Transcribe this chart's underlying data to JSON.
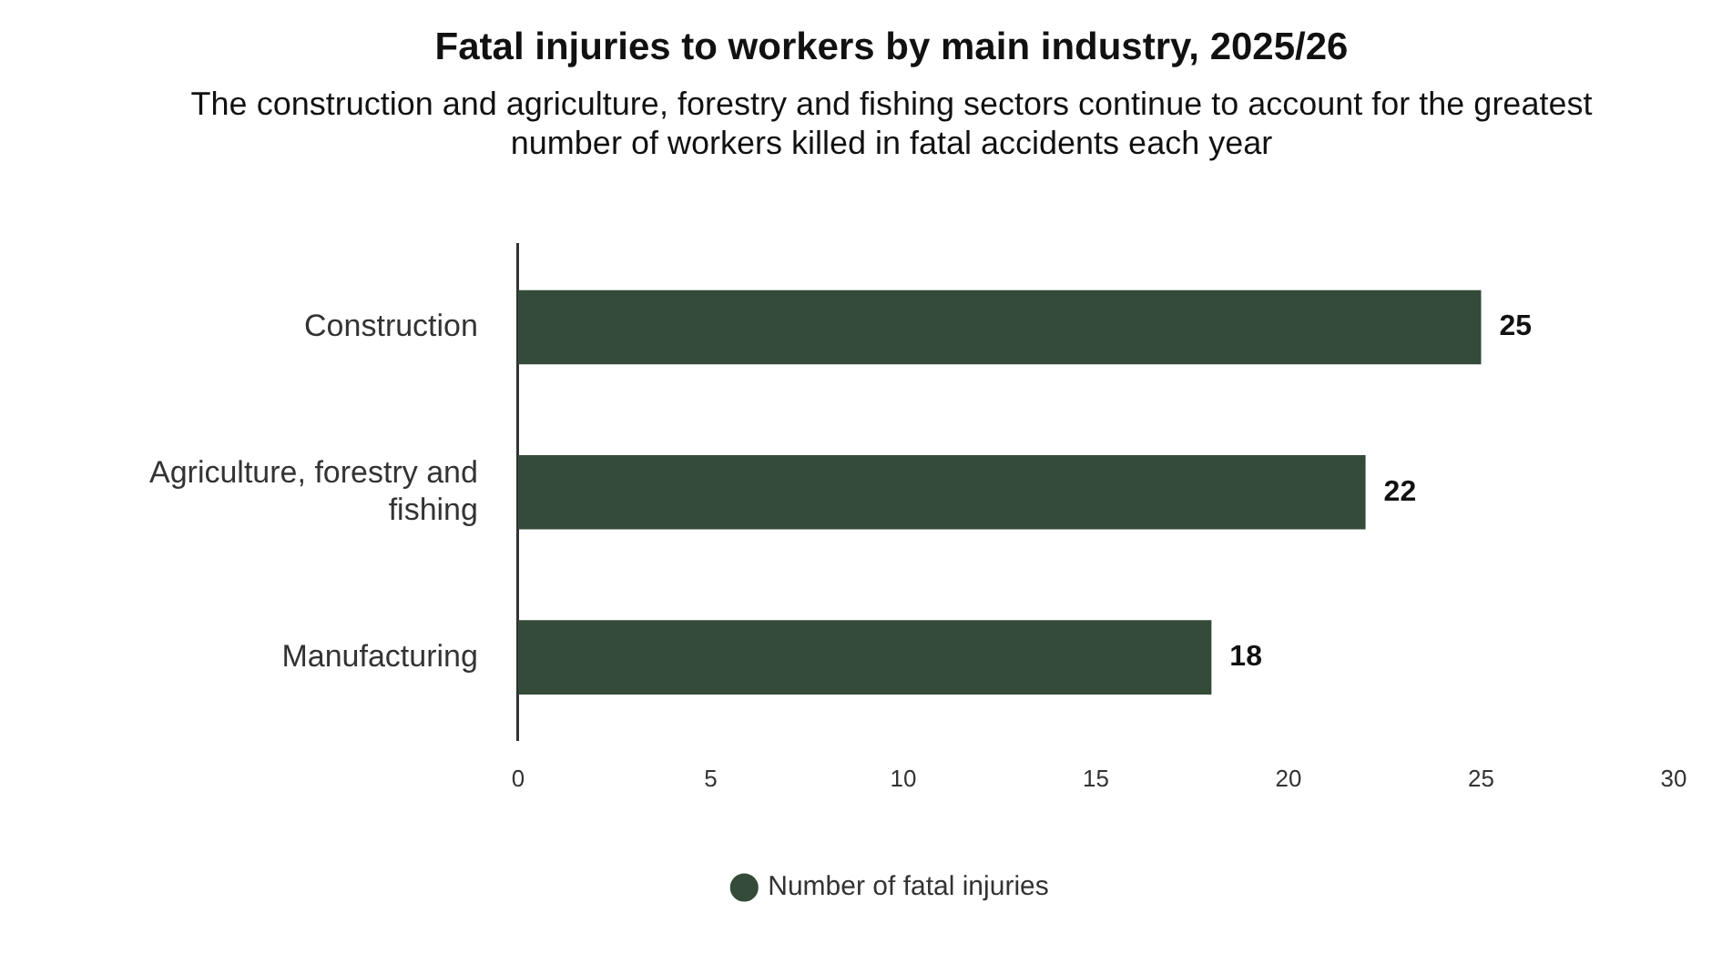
{
  "chart_data": {
    "type": "bar",
    "orientation": "horizontal",
    "title": "Fatal injuries to workers by main industry, 2025/26",
    "subtitle": "The construction and agriculture, forestry and fishing sectors continue to account for the greatest number of workers killed in fatal accidents each year",
    "categories": [
      "Construction",
      "Agriculture, forestry and fishing",
      "Manufacturing"
    ],
    "series": [
      {
        "name": "Number of fatal injuries",
        "color": "#344b39",
        "values": [
          25,
          22,
          18
        ]
      }
    ],
    "xlim": [
      0,
      30
    ],
    "xticks": [
      0,
      5,
      10,
      15,
      20,
      25,
      30
    ],
    "grid": false,
    "legend": "bottom",
    "marker": "circle",
    "data_labels": true
  }
}
